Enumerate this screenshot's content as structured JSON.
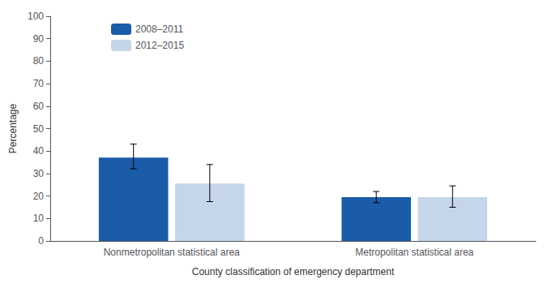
{
  "chart_data": {
    "type": "bar",
    "xlabel": "County classification of emergency department",
    "ylabel": "Percentage",
    "categories": [
      "Nonmetropolitan statistical area",
      "Metropolitan statistical area"
    ],
    "series": [
      {
        "name": "2008–2011",
        "color": "#1a5ca8",
        "values": [
          37.1,
          19.5
        ],
        "errors_upper": [
          6.0,
          2.5
        ],
        "errors_lower": [
          5.0,
          2.5
        ]
      },
      {
        "name": "2012–2015",
        "color": "#c5d5ea",
        "values": [
          25.5,
          19.5
        ],
        "errors_upper": [
          8.5,
          5.0
        ],
        "errors_lower": [
          8.0,
          4.5
        ]
      }
    ],
    "ylim": [
      0,
      100
    ],
    "yticks": [
      0,
      10,
      20,
      30,
      40,
      50,
      60,
      70,
      80,
      90,
      100
    ],
    "grid": false,
    "legend": "upper left"
  }
}
